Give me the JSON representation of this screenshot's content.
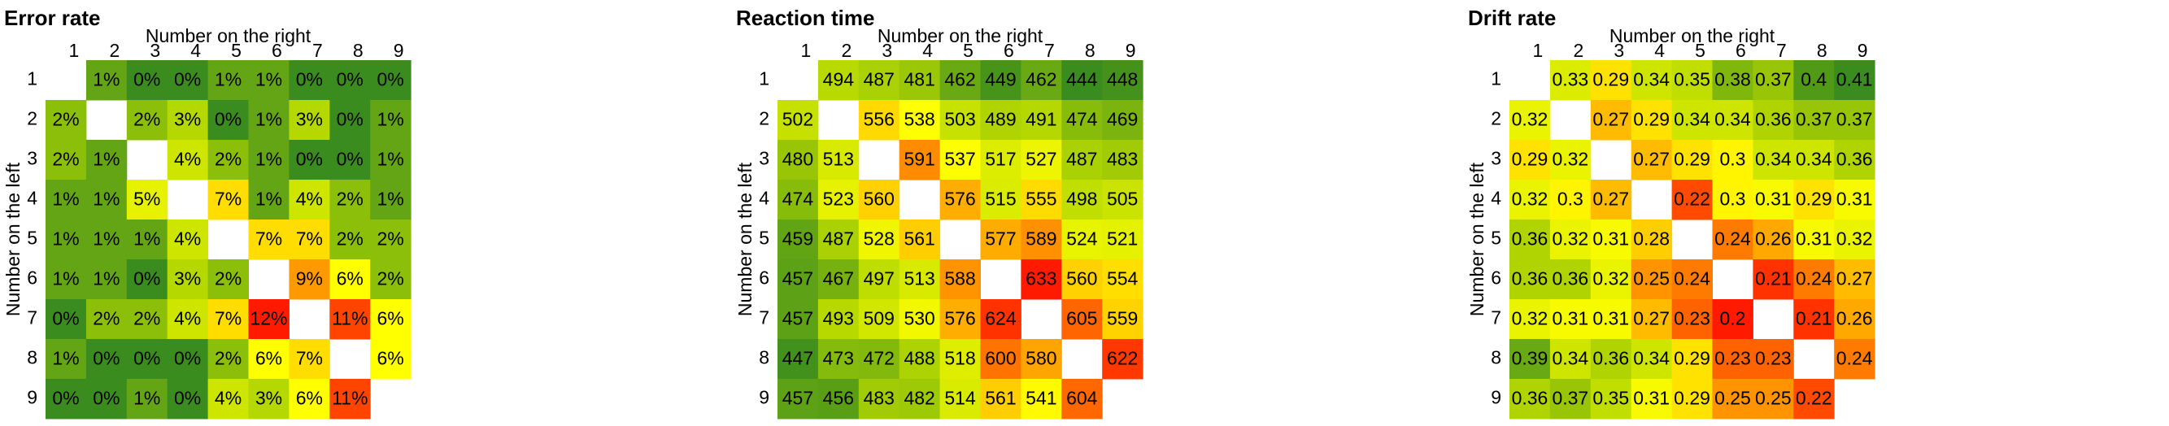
{
  "chart_data": [
    {
      "type": "heatmap",
      "title": "Error rate",
      "xlabel": "Number on the right",
      "ylabel": "Number on the left",
      "x": [
        1,
        2,
        3,
        4,
        5,
        6,
        7,
        8,
        9
      ],
      "y": [
        1,
        2,
        3,
        4,
        5,
        6,
        7,
        8,
        9
      ],
      "colors": [
        "#3a8c1e",
        "#b5d800",
        "#ffff00",
        "#ff9900",
        "#ff1a00"
      ],
      "values": [
        [
          null,
          1,
          0,
          0,
          1,
          1,
          0,
          0,
          0
        ],
        [
          2,
          null,
          2,
          3,
          0,
          1,
          3,
          0,
          1
        ],
        [
          2,
          1,
          null,
          4,
          2,
          1,
          0,
          0,
          1
        ],
        [
          1,
          1,
          5,
          null,
          7,
          1,
          4,
          2,
          1
        ],
        [
          1,
          1,
          1,
          4,
          null,
          7,
          7,
          2,
          2
        ],
        [
          1,
          1,
          0,
          3,
          2,
          null,
          9,
          6,
          2
        ],
        [
          0,
          2,
          2,
          4,
          7,
          12,
          null,
          11,
          6
        ],
        [
          1,
          0,
          0,
          0,
          2,
          6,
          7,
          null,
          6
        ],
        [
          0,
          0,
          1,
          0,
          4,
          3,
          6,
          11,
          null
        ]
      ],
      "value_labels": [
        [
          null,
          "1%",
          "0%",
          "0%",
          "1%",
          "1%",
          "0%",
          "0%",
          "0%"
        ],
        [
          "2%",
          null,
          "2%",
          "3%",
          "0%",
          "1%",
          "3%",
          "0%",
          "1%"
        ],
        [
          "2%",
          "1%",
          null,
          "4%",
          "2%",
          "1%",
          "0%",
          "0%",
          "1%"
        ],
        [
          "1%",
          "1%",
          "5%",
          null,
          "7%",
          "1%",
          "4%",
          "2%",
          "1%"
        ],
        [
          "1%",
          "1%",
          "1%",
          "4%",
          null,
          "7%",
          "7%",
          "2%",
          "2%"
        ],
        [
          "1%",
          "1%",
          "0%",
          "3%",
          "2%",
          null,
          "9%",
          "6%",
          "2%"
        ],
        [
          "0%",
          "2%",
          "2%",
          "4%",
          "7%",
          "12%",
          null,
          "11%",
          "6%"
        ],
        [
          "1%",
          "0%",
          "0%",
          "0%",
          "2%",
          "6%",
          "7%",
          null,
          "6%"
        ],
        [
          "0%",
          "0%",
          "1%",
          "0%",
          "4%",
          "3%",
          "6%",
          "11%",
          null
        ]
      ]
    },
    {
      "type": "heatmap",
      "title": "Reaction time",
      "xlabel": "Number on the right",
      "ylabel": "Number on the left",
      "x": [
        1,
        2,
        3,
        4,
        5,
        6,
        7,
        8,
        9
      ],
      "y": [
        1,
        2,
        3,
        4,
        5,
        6,
        7,
        8,
        9
      ],
      "colors": [
        "#3a8c1e",
        "#b5d800",
        "#ffff00",
        "#ff9900",
        "#ff1a00"
      ],
      "values": [
        [
          null,
          494,
          487,
          481,
          462,
          449,
          462,
          444,
          448
        ],
        [
          502,
          null,
          556,
          538,
          503,
          489,
          491,
          474,
          469
        ],
        [
          480,
          513,
          null,
          591,
          537,
          517,
          527,
          487,
          483
        ],
        [
          474,
          523,
          560,
          null,
          576,
          515,
          555,
          498,
          505
        ],
        [
          459,
          487,
          528,
          561,
          null,
          577,
          589,
          524,
          521
        ],
        [
          457,
          467,
          497,
          513,
          588,
          null,
          633,
          560,
          554
        ],
        [
          457,
          493,
          509,
          530,
          576,
          624,
          null,
          605,
          559
        ],
        [
          447,
          473,
          472,
          488,
          518,
          600,
          580,
          null,
          622
        ],
        [
          457,
          456,
          483,
          482,
          514,
          561,
          541,
          604,
          null
        ]
      ]
    },
    {
      "type": "heatmap",
      "title": "Drift rate",
      "xlabel": "Number on the right",
      "ylabel": "Number on the left",
      "x": [
        1,
        2,
        3,
        4,
        5,
        6,
        7,
        8,
        9
      ],
      "y": [
        1,
        2,
        3,
        4,
        5,
        6,
        7,
        8,
        9
      ],
      "colors": [
        "#ff1a00",
        "#ff9900",
        "#ffff00",
        "#b5d800",
        "#3a8c1e"
      ],
      "values": [
        [
          null,
          0.33,
          0.29,
          0.34,
          0.35,
          0.38,
          0.37,
          0.4,
          0.41
        ],
        [
          0.32,
          null,
          0.27,
          0.29,
          0.34,
          0.34,
          0.36,
          0.37,
          0.37
        ],
        [
          0.29,
          0.32,
          null,
          0.27,
          0.29,
          0.3,
          0.34,
          0.34,
          0.36
        ],
        [
          0.32,
          0.3,
          0.27,
          null,
          0.22,
          0.3,
          0.31,
          0.29,
          0.31
        ],
        [
          0.36,
          0.32,
          0.31,
          0.28,
          null,
          0.24,
          0.26,
          0.31,
          0.32
        ],
        [
          0.36,
          0.36,
          0.32,
          0.25,
          0.24,
          null,
          0.21,
          0.24,
          0.27
        ],
        [
          0.32,
          0.31,
          0.31,
          0.27,
          0.23,
          0.2,
          null,
          0.21,
          0.26
        ],
        [
          0.39,
          0.34,
          0.36,
          0.34,
          0.29,
          0.23,
          0.23,
          null,
          0.24
        ],
        [
          0.36,
          0.37,
          0.35,
          0.31,
          0.29,
          0.25,
          0.25,
          0.22,
          null
        ]
      ]
    }
  ]
}
